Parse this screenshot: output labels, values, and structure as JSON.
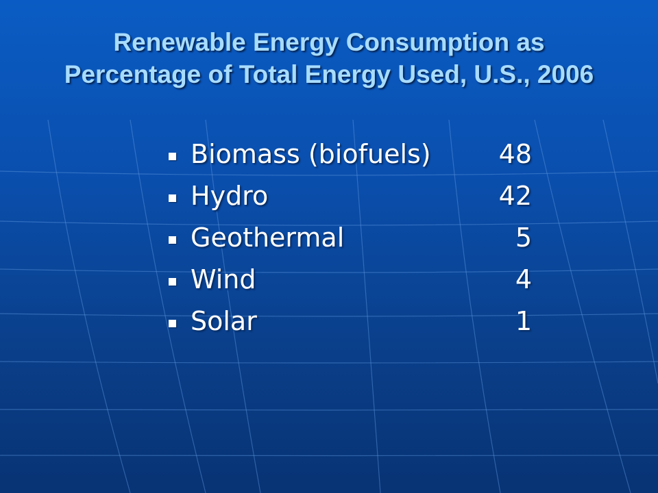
{
  "slide": {
    "title_line1": "Renewable Energy Consumption as",
    "title_line2": "Percentage of Total Energy Used, U.S., 2006",
    "items": [
      {
        "label": "Biomass (biofuels)",
        "value": "48"
      },
      {
        "label": "Hydro",
        "value": "42"
      },
      {
        "label": "Geothermal",
        "value": "5"
      },
      {
        "label": "Wind",
        "value": "4"
      },
      {
        "label": "Solar",
        "value": "1"
      }
    ]
  },
  "colors": {
    "background_top": "#0a5cc4",
    "background_bottom": "#083374",
    "title": "#a8dcff",
    "body_text": "#ffffff"
  }
}
